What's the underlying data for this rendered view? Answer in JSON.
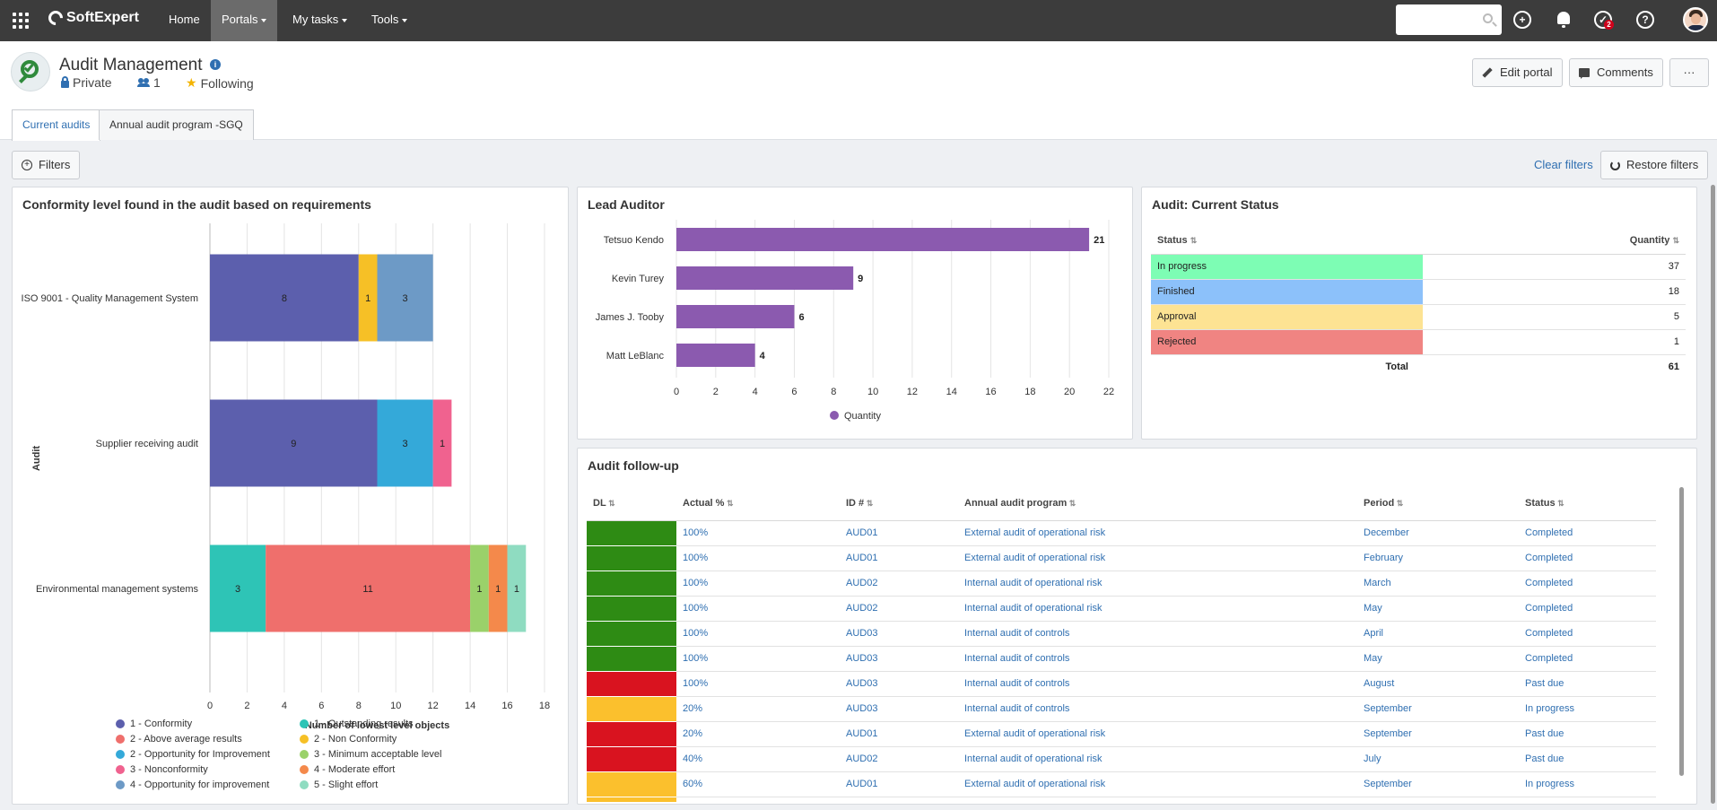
{
  "topbar": {
    "brand": "SoftExpert",
    "nav": [
      {
        "label": "Home",
        "has_caret": false,
        "active": false
      },
      {
        "label": "Portals",
        "has_caret": true,
        "active": true
      },
      {
        "label": "My tasks",
        "has_caret": true,
        "active": false
      },
      {
        "label": "Tools",
        "has_caret": true,
        "active": false
      }
    ],
    "search_placeholder": "",
    "help_badge": "2",
    "icons": [
      "apps-grid-icon",
      "search-icon",
      "add-circle-icon",
      "bell-icon",
      "help-check-icon",
      "question-icon",
      "avatar"
    ]
  },
  "header": {
    "title": "Audit Management",
    "privacy": "Private",
    "members": "1",
    "following": "Following",
    "edit_label": "Edit portal",
    "comments_label": "Comments",
    "more_label": "···",
    "tabs": [
      {
        "label": "Current audits",
        "active": true
      },
      {
        "label": "Annual audit program -SGQ",
        "active": false
      }
    ]
  },
  "filters": {
    "filters_label": "Filters",
    "clear_label": "Clear filters",
    "restore_label": "Restore filters"
  },
  "conformity": {
    "title": "Conformity level found in the audit based on requirements",
    "chart_data": {
      "type": "bar",
      "orientation": "horizontal",
      "stacked": true,
      "title": "Conformity level found in the audit based on requirements",
      "xlabel": "Number of lowest level objects",
      "ylabel": "Audit",
      "xlim": [
        0,
        18
      ],
      "xticks": [
        0,
        2,
        4,
        6,
        8,
        10,
        12,
        14,
        16,
        18
      ],
      "grid": true,
      "legend_position": "bottom",
      "categories": [
        "ISO 9001 - Quality Management System",
        "Supplier receiving audit",
        "Environmental management systems"
      ],
      "series": [
        {
          "name": "1 - Conformity",
          "color": "#5c5fad",
          "values": [
            8,
            9,
            0
          ]
        },
        {
          "name": "1 - Outstanding results",
          "color": "#2ec4b6",
          "values": [
            0,
            0,
            3
          ]
        },
        {
          "name": "2 - Above average results",
          "color": "#ef6f6c",
          "values": [
            0,
            0,
            11
          ]
        },
        {
          "name": "2 - Non Conformity",
          "color": "#f6c026",
          "values": [
            1,
            0,
            0
          ]
        },
        {
          "name": "2 - Opportunity for Improvement",
          "color": "#34a9d9",
          "values": [
            0,
            3,
            0
          ]
        },
        {
          "name": "3 - Minimum acceptable level",
          "color": "#9ad16a",
          "values": [
            0,
            0,
            1
          ]
        },
        {
          "name": "3 - Nonconformity",
          "color": "#f0628f",
          "values": [
            0,
            1,
            0
          ]
        },
        {
          "name": "4 - Moderate effort",
          "color": "#f4894b",
          "values": [
            0,
            0,
            1
          ]
        },
        {
          "name": "4 - Opportunity for improvement",
          "color": "#6d9ac6",
          "values": [
            3,
            0,
            0
          ]
        },
        {
          "name": "5 - Slight effort",
          "color": "#8fdcc1",
          "values": [
            0,
            0,
            1
          ]
        }
      ]
    }
  },
  "lead": {
    "title": "Lead Auditor",
    "chart_data": {
      "type": "bar",
      "orientation": "horizontal",
      "categories": [
        "Tetsuo Kendo",
        "Kevin Turey",
        "James J. Tooby",
        "Matt LeBlanc"
      ],
      "series": [
        {
          "name": "Quantity",
          "color": "#8b5aaf",
          "values": [
            21,
            9,
            6,
            4
          ]
        }
      ],
      "xlim": [
        0,
        22
      ],
      "xticks": [
        0,
        2,
        4,
        6,
        8,
        10,
        12,
        14,
        16,
        18,
        20,
        22
      ],
      "grid": true,
      "legend_position": "bottom"
    }
  },
  "status": {
    "title": "Audit: Current Status",
    "col_status": "Status",
    "col_qty": "Quantity",
    "rows": [
      {
        "label": "In progress",
        "value": "37",
        "color": "#7dfdb4"
      },
      {
        "label": "Finished",
        "value": "18",
        "color": "#8cc1fa"
      },
      {
        "label": "Approval",
        "value": "5",
        "color": "#fde393"
      },
      {
        "label": "Rejected",
        "value": "1",
        "color": "#f08482"
      }
    ],
    "total_label": "Total",
    "total_value": "61"
  },
  "followup": {
    "title": "Audit follow-up",
    "columns": [
      "DL",
      "Actual %",
      "ID #",
      "Annual audit program",
      "Period",
      "Status"
    ],
    "rows": [
      {
        "dl": "#2e8b14",
        "actual": "100%",
        "id": "AUD01",
        "program": "External audit of operational risk",
        "period": "December",
        "status": "Completed"
      },
      {
        "dl": "#2e8b14",
        "actual": "100%",
        "id": "AUD01",
        "program": "External audit of operational risk",
        "period": "February",
        "status": "Completed"
      },
      {
        "dl": "#2e8b14",
        "actual": "100%",
        "id": "AUD02",
        "program": "Internal audit of operational risk",
        "period": "March",
        "status": "Completed"
      },
      {
        "dl": "#2e8b14",
        "actual": "100%",
        "id": "AUD02",
        "program": "Internal audit of operational risk",
        "period": "May",
        "status": "Completed"
      },
      {
        "dl": "#2e8b14",
        "actual": "100%",
        "id": "AUD03",
        "program": "Internal audit of controls",
        "period": "April",
        "status": "Completed"
      },
      {
        "dl": "#2e8b14",
        "actual": "100%",
        "id": "AUD03",
        "program": "Internal audit of controls",
        "period": "May",
        "status": "Completed"
      },
      {
        "dl": "#d9131f",
        "actual": "100%",
        "id": "AUD03",
        "program": "Internal audit of controls",
        "period": "August",
        "status": "Past due"
      },
      {
        "dl": "#fbc02d",
        "actual": "20%",
        "id": "AUD03",
        "program": "Internal audit of controls",
        "period": "September",
        "status": "In progress"
      },
      {
        "dl": "#d9131f",
        "actual": "20%",
        "id": "AUD01",
        "program": "External audit of operational risk",
        "period": "September",
        "status": "Past due"
      },
      {
        "dl": "#d9131f",
        "actual": "40%",
        "id": "AUD02",
        "program": "Internal audit of operational risk",
        "period": "July",
        "status": "Past due"
      },
      {
        "dl": "#fbc02d",
        "actual": "60%",
        "id": "AUD01",
        "program": "External audit of operational risk",
        "period": "September",
        "status": "In progress"
      },
      {
        "dl": "#fbc02d",
        "actual": "",
        "id": "",
        "program": "",
        "period": "",
        "status": ""
      }
    ]
  }
}
